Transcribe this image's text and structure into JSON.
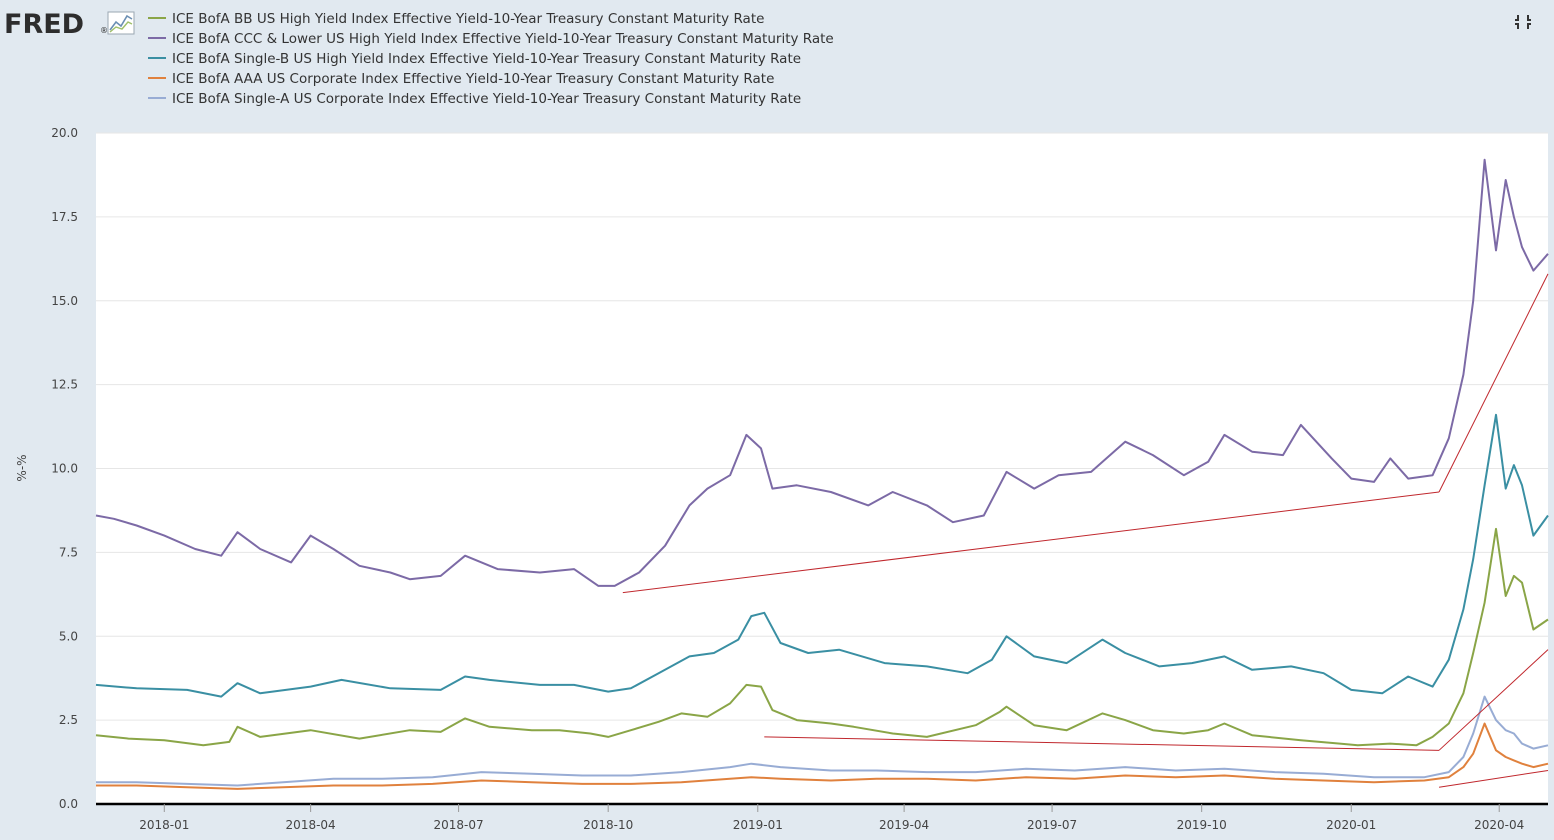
{
  "header": {
    "logo_text": "FRED",
    "logo_mark": "®",
    "logo_icon": "fred-chart-icon",
    "fullscreen_icon": "fullscreen-icon"
  },
  "chart_data": {
    "type": "line",
    "ylabel": "%-%",
    "ylim": [
      0,
      20
    ],
    "y_ticks": [
      "0.0",
      "2.5",
      "5.0",
      "7.5",
      "10.0",
      "12.5",
      "15.0",
      "17.5",
      "20.0"
    ],
    "x_range": [
      "2017-11-20",
      "2020-05-01"
    ],
    "x_ticks": [
      "2018-01",
      "2018-04",
      "2018-07",
      "2018-10",
      "2019-01",
      "2019-04",
      "2019-07",
      "2019-10",
      "2020-01",
      "2020-04"
    ],
    "grid": "horizontal",
    "legend_position": "top-left",
    "series": [
      {
        "name": "ICE BofA BB US High Yield Index Effective Yield-10-Year Treasury Constant Maturity Rate",
        "color": "#8aa547",
        "x": [
          "2017-11-20",
          "2017-12-10",
          "2018-01-01",
          "2018-01-25",
          "2018-02-10",
          "2018-02-15",
          "2018-03-01",
          "2018-04-01",
          "2018-05-01",
          "2018-06-01",
          "2018-06-20",
          "2018-07-05",
          "2018-07-20",
          "2018-08-15",
          "2018-09-01",
          "2018-09-20",
          "2018-10-01",
          "2018-10-15",
          "2018-11-01",
          "2018-11-15",
          "2018-12-01",
          "2018-12-15",
          "2018-12-25",
          "2019-01-03",
          "2019-01-10",
          "2019-01-25",
          "2019-02-15",
          "2019-03-01",
          "2019-03-25",
          "2019-04-15",
          "2019-05-15",
          "2019-05-30",
          "2019-06-03",
          "2019-06-20",
          "2019-07-10",
          "2019-08-01",
          "2019-08-15",
          "2019-09-01",
          "2019-09-20",
          "2019-10-05",
          "2019-10-15",
          "2019-11-01",
          "2019-12-01",
          "2019-12-25",
          "2020-01-05",
          "2020-01-25",
          "2020-02-10",
          "2020-02-20",
          "2020-03-01",
          "2020-03-10",
          "2020-03-16",
          "2020-03-23",
          "2020-03-30",
          "2020-04-05",
          "2020-04-10",
          "2020-04-15",
          "2020-04-22",
          "2020-05-01"
        ],
        "y": [
          2.05,
          1.95,
          1.9,
          1.75,
          1.85,
          2.3,
          2.0,
          2.2,
          1.95,
          2.2,
          2.15,
          2.55,
          2.3,
          2.2,
          2.2,
          2.1,
          2.0,
          2.2,
          2.45,
          2.7,
          2.6,
          3.0,
          3.55,
          3.5,
          2.8,
          2.5,
          2.4,
          2.3,
          2.1,
          2.0,
          2.35,
          2.75,
          2.9,
          2.35,
          2.2,
          2.7,
          2.5,
          2.2,
          2.1,
          2.2,
          2.4,
          2.05,
          1.9,
          1.8,
          1.75,
          1.8,
          1.75,
          2.0,
          2.4,
          3.3,
          4.5,
          6.0,
          8.2,
          6.2,
          6.8,
          6.6,
          5.2,
          5.5
        ]
      },
      {
        "name": "ICE BofA CCC & Lower US High Yield Index Effective Yield-10-Year Treasury Constant Maturity Rate",
        "color": "#7c6aa6",
        "x": [
          "2017-11-20",
          "2017-12-01",
          "2017-12-15",
          "2018-01-01",
          "2018-01-20",
          "2018-02-05",
          "2018-02-15",
          "2018-03-01",
          "2018-03-20",
          "2018-04-01",
          "2018-04-15",
          "2018-05-01",
          "2018-05-20",
          "2018-06-01",
          "2018-06-20",
          "2018-07-05",
          "2018-07-25",
          "2018-08-20",
          "2018-09-10",
          "2018-09-25",
          "2018-10-05",
          "2018-10-20",
          "2018-11-05",
          "2018-11-20",
          "2018-12-01",
          "2018-12-15",
          "2018-12-25",
          "2019-01-03",
          "2019-01-10",
          "2019-01-25",
          "2019-02-15",
          "2019-03-10",
          "2019-03-25",
          "2019-04-15",
          "2019-05-01",
          "2019-05-20",
          "2019-06-03",
          "2019-06-20",
          "2019-07-05",
          "2019-07-25",
          "2019-08-15",
          "2019-09-01",
          "2019-09-20",
          "2019-10-05",
          "2019-10-15",
          "2019-11-01",
          "2019-11-20",
          "2019-12-01",
          "2019-12-20",
          "2020-01-01",
          "2020-01-15",
          "2020-01-25",
          "2020-02-05",
          "2020-02-20",
          "2020-03-01",
          "2020-03-10",
          "2020-03-16",
          "2020-03-23",
          "2020-03-30",
          "2020-04-05",
          "2020-04-10",
          "2020-04-15",
          "2020-04-22",
          "2020-05-01"
        ],
        "y": [
          8.6,
          8.5,
          8.3,
          8.0,
          7.6,
          7.4,
          8.1,
          7.6,
          7.2,
          8.0,
          7.6,
          7.1,
          6.9,
          6.7,
          6.8,
          7.4,
          7.0,
          6.9,
          7.0,
          6.5,
          6.5,
          6.9,
          7.7,
          8.9,
          9.4,
          9.8,
          11.0,
          10.6,
          9.4,
          9.5,
          9.3,
          8.9,
          9.3,
          8.9,
          8.4,
          8.6,
          9.9,
          9.4,
          9.8,
          9.9,
          10.8,
          10.4,
          9.8,
          10.2,
          11.0,
          10.5,
          10.4,
          11.3,
          10.3,
          9.7,
          9.6,
          10.3,
          9.7,
          9.8,
          10.9,
          12.8,
          15.0,
          19.2,
          16.5,
          18.6,
          17.5,
          16.6,
          15.9,
          16.4
        ]
      },
      {
        "name": "ICE BofA Single-B US High Yield Index Effective Yield-10-Year Treasury Constant Maturity Rate",
        "color": "#3a8fa3",
        "x": [
          "2017-11-20",
          "2017-12-15",
          "2018-01-15",
          "2018-02-05",
          "2018-02-15",
          "2018-03-01",
          "2018-04-01",
          "2018-04-20",
          "2018-05-20",
          "2018-06-20",
          "2018-07-05",
          "2018-07-20",
          "2018-08-20",
          "2018-09-10",
          "2018-10-01",
          "2018-10-15",
          "2018-11-01",
          "2018-11-20",
          "2018-12-05",
          "2018-12-20",
          "2018-12-28",
          "2019-01-05",
          "2019-01-15",
          "2019-02-01",
          "2019-02-20",
          "2019-03-20",
          "2019-04-15",
          "2019-05-10",
          "2019-05-25",
          "2019-06-03",
          "2019-06-20",
          "2019-07-10",
          "2019-08-01",
          "2019-08-15",
          "2019-09-05",
          "2019-09-25",
          "2019-10-15",
          "2019-11-01",
          "2019-11-25",
          "2019-12-15",
          "2020-01-01",
          "2020-01-20",
          "2020-02-05",
          "2020-02-20",
          "2020-03-01",
          "2020-03-10",
          "2020-03-16",
          "2020-03-23",
          "2020-03-30",
          "2020-04-05",
          "2020-04-10",
          "2020-04-15",
          "2020-04-22",
          "2020-05-01"
        ],
        "y": [
          3.55,
          3.45,
          3.4,
          3.2,
          3.6,
          3.3,
          3.5,
          3.7,
          3.45,
          3.4,
          3.8,
          3.7,
          3.55,
          3.55,
          3.35,
          3.45,
          3.9,
          4.4,
          4.5,
          4.9,
          5.6,
          5.7,
          4.8,
          4.5,
          4.6,
          4.2,
          4.1,
          3.9,
          4.3,
          5.0,
          4.4,
          4.2,
          4.9,
          4.5,
          4.1,
          4.2,
          4.4,
          4.0,
          4.1,
          3.9,
          3.4,
          3.3,
          3.8,
          3.5,
          4.3,
          5.8,
          7.3,
          9.5,
          11.6,
          9.4,
          10.1,
          9.5,
          8.0,
          8.6
        ]
      },
      {
        "name": "ICE BofA AAA US Corporate Index Effective Yield-10-Year Treasury Constant Maturity Rate",
        "color": "#e0813d",
        "x": [
          "2017-11-20",
          "2017-12-15",
          "2018-01-15",
          "2018-02-15",
          "2018-03-15",
          "2018-04-15",
          "2018-05-15",
          "2018-06-15",
          "2018-07-15",
          "2018-08-15",
          "2018-09-15",
          "2018-10-15",
          "2018-11-15",
          "2018-12-15",
          "2018-12-28",
          "2019-01-15",
          "2019-02-15",
          "2019-03-15",
          "2019-04-15",
          "2019-05-15",
          "2019-06-15",
          "2019-07-15",
          "2019-08-15",
          "2019-09-15",
          "2019-10-15",
          "2019-11-15",
          "2019-12-15",
          "2020-01-15",
          "2020-02-15",
          "2020-03-01",
          "2020-03-10",
          "2020-03-16",
          "2020-03-23",
          "2020-03-30",
          "2020-04-05",
          "2020-04-10",
          "2020-04-15",
          "2020-04-22",
          "2020-05-01"
        ],
        "y": [
          0.55,
          0.55,
          0.5,
          0.45,
          0.5,
          0.55,
          0.55,
          0.6,
          0.7,
          0.65,
          0.6,
          0.6,
          0.65,
          0.75,
          0.8,
          0.75,
          0.7,
          0.75,
          0.75,
          0.7,
          0.8,
          0.75,
          0.85,
          0.8,
          0.85,
          0.75,
          0.7,
          0.65,
          0.7,
          0.8,
          1.1,
          1.5,
          2.4,
          1.6,
          1.4,
          1.3,
          1.2,
          1.1,
          1.2
        ]
      },
      {
        "name": "ICE BofA Single-A US Corporate Index Effective Yield-10-Year Treasury Constant Maturity Rate",
        "color": "#98acd4",
        "x": [
          "2017-11-20",
          "2017-12-15",
          "2018-01-15",
          "2018-02-15",
          "2018-03-15",
          "2018-04-15",
          "2018-05-15",
          "2018-06-15",
          "2018-07-15",
          "2018-08-15",
          "2018-09-15",
          "2018-10-15",
          "2018-11-15",
          "2018-12-15",
          "2018-12-28",
          "2019-01-15",
          "2019-02-15",
          "2019-03-15",
          "2019-04-15",
          "2019-05-15",
          "2019-06-15",
          "2019-07-15",
          "2019-08-15",
          "2019-09-15",
          "2019-10-15",
          "2019-11-15",
          "2019-12-15",
          "2020-01-15",
          "2020-02-15",
          "2020-03-01",
          "2020-03-10",
          "2020-03-16",
          "2020-03-23",
          "2020-03-30",
          "2020-04-05",
          "2020-04-10",
          "2020-04-15",
          "2020-04-22",
          "2020-05-01"
        ],
        "y": [
          0.65,
          0.65,
          0.6,
          0.55,
          0.65,
          0.75,
          0.75,
          0.8,
          0.95,
          0.9,
          0.85,
          0.85,
          0.95,
          1.1,
          1.2,
          1.1,
          1.0,
          1.0,
          0.95,
          0.95,
          1.05,
          1.0,
          1.1,
          1.0,
          1.05,
          0.95,
          0.9,
          0.8,
          0.8,
          0.95,
          1.4,
          2.1,
          3.2,
          2.5,
          2.2,
          2.1,
          1.8,
          1.65,
          1.75
        ]
      }
    ],
    "annotations": {
      "color": "#c0272d",
      "trend_lines": [
        {
          "x": [
            "2018-10-10",
            "2020-02-24"
          ],
          "y": [
            6.3,
            9.3
          ]
        },
        {
          "x": [
            "2020-02-24",
            "2020-05-01"
          ],
          "y": [
            9.3,
            15.8
          ]
        },
        {
          "x": [
            "2019-01-05",
            "2020-02-24"
          ],
          "y": [
            2.0,
            1.6
          ]
        },
        {
          "x": [
            "2020-02-24",
            "2020-05-01"
          ],
          "y": [
            1.6,
            4.6
          ]
        },
        {
          "x": [
            "2020-02-24",
            "2020-05-01"
          ],
          "y": [
            0.5,
            1.0
          ]
        }
      ]
    }
  }
}
